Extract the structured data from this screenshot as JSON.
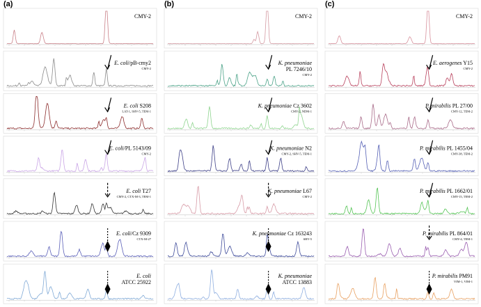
{
  "columns": [
    {
      "label": "(a)",
      "panels": [
        {
          "strain": "CMY-2"
        },
        {
          "species": "E. coli",
          "strain": "/pB-cmy2",
          "enzymes": "CMY-2"
        },
        {
          "species": "E. coli",
          "strain": " S208",
          "enzymes": "LAT-1, SHV-5, TEM-1"
        },
        {
          "species": "E. coli",
          "strain": "/PL 5143/09",
          "enzymes": "CMY-2"
        },
        {
          "species": "E. coli",
          "strain": " T27",
          "enzymes": "CMY-2, CTX-M-3, TEM-1"
        },
        {
          "species": "E. coli",
          "strain": "/Cz 9309",
          "enzymes": "CTX-M-27"
        },
        {
          "species": "E. coli",
          "strain2": "ATCC 25922"
        }
      ]
    },
    {
      "label": "(b)",
      "panels": [
        {
          "strain": "CMY-2"
        },
        {
          "species": "K. pneumoniae",
          "strain2": "PL 7246/10",
          "enzymes": "CMY-2"
        },
        {
          "species": "K. pneumoniae",
          "strain": " Cz 3602",
          "enzymes": "CMY-2, NDM-1"
        },
        {
          "species": "K. pneumoniae",
          "strain": " N2",
          "enzymes": "CMY-2, SHV-5, TEM-1"
        },
        {
          "species": "K. pneumoniae",
          "strain": " L67",
          "enzymes": "CMY-2"
        },
        {
          "species": "K. pneumoniae",
          "strain": "  Cz 163243",
          "enzymes": "SHV-5"
        },
        {
          "species": "K. pneumoniae",
          "strain2": "ATCC 13883"
        }
      ]
    },
    {
      "label": "(c)",
      "panels": [
        {
          "strain": "CMY-2"
        },
        {
          "species": "E. aerogenes",
          "strain": " Y15",
          "enzymes": "CMY-2"
        },
        {
          "species": "P. mirabilis",
          "strain": " PL 27/00",
          "enzymes": "CMY-12, TEM-2"
        },
        {
          "species": "P. mirabilis",
          "strain": " PL 1455/04",
          "enzymes": "CMY-38, TEM-2"
        },
        {
          "species": "P. mirabilis",
          "strain": " PL 1662/01",
          "enzymes": "CMY-15, TEM-2"
        },
        {
          "species": "P. mirabilis",
          "strain": " PL 864/01",
          "enzymes": "CMY-4, TEM-1"
        },
        {
          "species": "P. mirabilis",
          "strain": " PM91",
          "enzymes": "VIM-1, VIM-1"
        }
      ]
    }
  ]
}
